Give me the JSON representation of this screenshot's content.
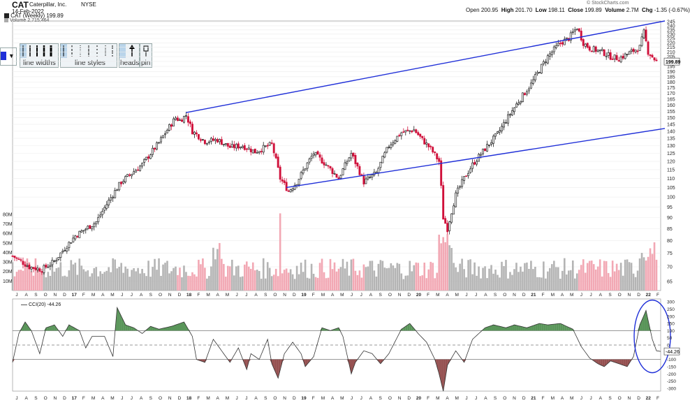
{
  "header": {
    "symbol": "CAT",
    "company": "Caterpillar, Inc.",
    "exchange": "NYSE",
    "date": "14-Feb-2022",
    "open_label": "Open",
    "open": "200.95",
    "high_label": "High",
    "high": "201.70",
    "low_label": "Low",
    "low": "198.11",
    "close_label": "Close",
    "close": "199.89",
    "volume_label": "Volume",
    "volume": "2.7M",
    "chg_label": "Chg",
    "chg": "-1.35 (-0.67%)",
    "credit": "© StockCharts.com",
    "legend_price": "CAT (Weekly) 199.89",
    "legend_volume": "Volume 2,715,464"
  },
  "toolbar": {
    "labels": [
      "line widths",
      "line styles",
      "heads",
      "pin"
    ]
  },
  "colors": {
    "up": "#222222",
    "down": "#d0103a",
    "trend": "#1f2fd8",
    "vol_up": "#b4b4b4",
    "vol_down": "#f2a8b4",
    "cci_pos": "#2f7a2f",
    "cci_neg": "#7a2424",
    "circle": "#1f2fd8"
  },
  "chart_data": [
    {
      "type": "candlestick",
      "title": "CAT (Weekly) 199.89",
      "ylim": [
        62,
        246
      ],
      "log_scale": true,
      "last_price_label": "199.89",
      "y_ticks": [
        245,
        240,
        235,
        230,
        225,
        220,
        215,
        210,
        205,
        200,
        195,
        190,
        185,
        180,
        175,
        170,
        165,
        160,
        155,
        150,
        145,
        140,
        135,
        130,
        125,
        120,
        115,
        110,
        105,
        100,
        95,
        90,
        85,
        80,
        75,
        70,
        65
      ],
      "x_labels": [
        "J",
        "A",
        "S",
        "O",
        "N",
        "D",
        "17",
        "F",
        "M",
        "A",
        "M",
        "J",
        "J",
        "A",
        "S",
        "O",
        "N",
        "D",
        "18",
        "F",
        "M",
        "A",
        "M",
        "J",
        "J",
        "A",
        "S",
        "O",
        "N",
        "D",
        "19",
        "F",
        "M",
        "A",
        "M",
        "J",
        "J",
        "A",
        "S",
        "O",
        "N",
        "D",
        "20",
        "F",
        "M",
        "A",
        "M",
        "J",
        "J",
        "A",
        "S",
        "O",
        "N",
        "D",
        "21",
        "F",
        "M",
        "A",
        "M",
        "J",
        "J",
        "A",
        "S",
        "O",
        "N",
        "D",
        "22",
        "F"
      ],
      "anchors": [
        [
          0,
          74
        ],
        [
          8,
          70
        ],
        [
          14,
          69
        ],
        [
          20,
          72
        ],
        [
          30,
          82
        ],
        [
          40,
          88
        ],
        [
          52,
          108
        ],
        [
          62,
          118
        ],
        [
          70,
          132
        ],
        [
          78,
          150
        ],
        [
          80,
          148
        ],
        [
          83,
          152
        ],
        [
          86,
          140
        ],
        [
          92,
          133
        ],
        [
          98,
          134
        ],
        [
          104,
          129
        ],
        [
          110,
          130
        ],
        [
          116,
          126
        ],
        [
          124,
          131
        ],
        [
          128,
          110
        ],
        [
          132,
          103
        ],
        [
          136,
          108
        ],
        [
          144,
          125
        ],
        [
          150,
          118
        ],
        [
          156,
          110
        ],
        [
          162,
          125
        ],
        [
          168,
          108
        ],
        [
          174,
          113
        ],
        [
          180,
          130
        ],
        [
          186,
          139
        ],
        [
          192,
          141
        ],
        [
          196,
          134
        ],
        [
          200,
          128
        ],
        [
          204,
          120
        ],
        [
          206,
          90
        ],
        [
          208,
          85
        ],
        [
          212,
          101
        ],
        [
          216,
          110
        ],
        [
          220,
          118
        ],
        [
          226,
          128
        ],
        [
          232,
          138
        ],
        [
          240,
          158
        ],
        [
          248,
          178
        ],
        [
          256,
          205
        ],
        [
          262,
          220
        ],
        [
          266,
          225
        ],
        [
          270,
          238
        ],
        [
          273,
          220
        ],
        [
          276,
          214
        ],
        [
          282,
          210
        ],
        [
          286,
          205
        ],
        [
          290,
          203
        ],
        [
          296,
          210
        ],
        [
          300,
          215
        ],
        [
          302,
          232
        ],
        [
          304,
          210
        ],
        [
          308,
          200
        ]
      ],
      "trendlines": [
        {
          "x": [
            83,
            312
          ],
          "y": [
            154,
            246
          ]
        },
        {
          "x": [
            131,
            312
          ],
          "y": [
            105,
            142
          ]
        }
      ]
    },
    {
      "type": "bar",
      "title": "Volume 2,715,464",
      "ylim": [
        0,
        85
      ],
      "y_ticks": [
        "80M",
        "70M",
        "60M",
        "50M",
        "40M",
        "30M",
        "20M",
        "10M"
      ],
      "y_values": [
        80,
        70,
        60,
        50,
        40,
        30,
        20,
        10
      ]
    },
    {
      "type": "area",
      "title": "CCI(20) -44.26",
      "ylim": [
        -320,
        320
      ],
      "y_ticks": [
        300,
        250,
        200,
        150,
        100,
        50,
        0,
        -50,
        -100,
        -150,
        -200,
        -250,
        -300
      ],
      "reference_lines": [
        100,
        0,
        -100
      ],
      "last_label": "-44.26",
      "anchors": [
        [
          0,
          -120
        ],
        [
          3,
          80
        ],
        [
          6,
          160
        ],
        [
          9,
          100
        ],
        [
          13,
          -60
        ],
        [
          16,
          120
        ],
        [
          20,
          140
        ],
        [
          24,
          60
        ],
        [
          27,
          140
        ],
        [
          32,
          100
        ],
        [
          35,
          -20
        ],
        [
          38,
          60
        ],
        [
          44,
          60
        ],
        [
          48,
          -80
        ],
        [
          50,
          260
        ],
        [
          54,
          140
        ],
        [
          58,
          120
        ],
        [
          62,
          80
        ],
        [
          66,
          130
        ],
        [
          70,
          110
        ],
        [
          76,
          130
        ],
        [
          82,
          160
        ],
        [
          86,
          60
        ],
        [
          88,
          -100
        ],
        [
          92,
          -120
        ],
        [
          96,
          40
        ],
        [
          100,
          -40
        ],
        [
          104,
          -120
        ],
        [
          108,
          -20
        ],
        [
          112,
          -170
        ],
        [
          114,
          -60
        ],
        [
          118,
          -100
        ],
        [
          122,
          40
        ],
        [
          124,
          -130
        ],
        [
          127,
          -230
        ],
        [
          130,
          -60
        ],
        [
          134,
          20
        ],
        [
          138,
          -60
        ],
        [
          140,
          -150
        ],
        [
          144,
          -80
        ],
        [
          148,
          120
        ],
        [
          152,
          100
        ],
        [
          156,
          120
        ],
        [
          158,
          60
        ],
        [
          162,
          -200
        ],
        [
          164,
          -120
        ],
        [
          168,
          -40
        ],
        [
          172,
          -60
        ],
        [
          176,
          -130
        ],
        [
          180,
          -60
        ],
        [
          186,
          110
        ],
        [
          190,
          150
        ],
        [
          194,
          80
        ],
        [
          198,
          20
        ],
        [
          202,
          -100
        ],
        [
          204,
          -200
        ],
        [
          206,
          -320
        ],
        [
          208,
          -140
        ],
        [
          212,
          -40
        ],
        [
          216,
          -120
        ],
        [
          220,
          40
        ],
        [
          226,
          120
        ],
        [
          230,
          140
        ],
        [
          236,
          120
        ],
        [
          240,
          140
        ],
        [
          246,
          120
        ],
        [
          252,
          150
        ],
        [
          256,
          140
        ],
        [
          262,
          150
        ],
        [
          268,
          110
        ],
        [
          272,
          -10
        ],
        [
          276,
          -90
        ],
        [
          280,
          -130
        ],
        [
          283,
          -150
        ],
        [
          286,
          -110
        ],
        [
          290,
          -130
        ],
        [
          294,
          -150
        ],
        [
          297,
          -80
        ],
        [
          300,
          140
        ],
        [
          303,
          240
        ],
        [
          306,
          40
        ],
        [
          308,
          -40
        ],
        [
          310,
          -44
        ]
      ]
    }
  ]
}
